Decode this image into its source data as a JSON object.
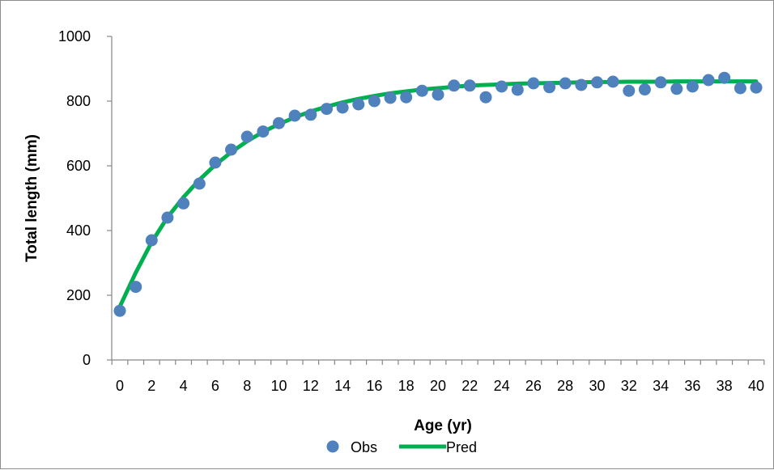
{
  "chart_data": {
    "type": "scatter",
    "title": "",
    "xlabel": "Age (yr)",
    "ylabel": "Total length (mm)",
    "xlim": [
      0,
      40
    ],
    "ylim": [
      0,
      1000
    ],
    "x_ticks": [
      "0",
      "2",
      "4",
      "6",
      "8",
      "10",
      "12",
      "14",
      "16",
      "18",
      "20",
      "22",
      "24",
      "26",
      "28",
      "30",
      "32",
      "34",
      "36",
      "38",
      "40"
    ],
    "y_ticks": [
      "0",
      "200",
      "400",
      "600",
      "800",
      "1000"
    ],
    "grid": false,
    "legend": {
      "position": "bottom",
      "entries": [
        "Obs",
        "Pred"
      ]
    },
    "colors": {
      "obs": "#4f81bd",
      "pred": "#00b050",
      "axis": "#868686",
      "frame": "#8c8c8c"
    },
    "series": [
      {
        "name": "Obs",
        "kind": "points",
        "x": [
          0,
          1,
          2,
          3,
          4,
          5,
          6,
          7,
          8,
          9,
          10,
          11,
          12,
          13,
          14,
          15,
          16,
          17,
          18,
          19,
          20,
          21,
          22,
          23,
          24,
          25,
          26,
          27,
          28,
          29,
          30,
          31,
          32,
          33,
          34,
          35,
          36,
          37,
          38,
          39,
          40
        ],
        "y": [
          152,
          226,
          370,
          440,
          484,
          545,
          610,
          650,
          690,
          706,
          732,
          755,
          758,
          776,
          780,
          790,
          800,
          810,
          812,
          832,
          820,
          848,
          848,
          812,
          845,
          835,
          855,
          843,
          855,
          850,
          858,
          860,
          832,
          836,
          858,
          838,
          845,
          865,
          872,
          840,
          842
        ]
      },
      {
        "name": "Pred",
        "kind": "line",
        "x": [
          0,
          1,
          2,
          3,
          4,
          5,
          6,
          7,
          8,
          9,
          10,
          11,
          12,
          13,
          14,
          15,
          16,
          17,
          18,
          19,
          20,
          21,
          22,
          23,
          24,
          25,
          26,
          27,
          28,
          29,
          30,
          31,
          32,
          33,
          34,
          35,
          36,
          37,
          38,
          39,
          40
        ],
        "y": [
          165,
          270,
          364,
          441,
          503,
          557,
          603,
          642,
          676,
          705,
          729,
          750,
          768,
          783,
          796,
          807,
          816,
          824,
          830,
          836,
          840,
          844,
          848,
          850,
          852,
          854,
          855,
          856,
          857,
          858,
          859,
          859,
          860,
          860,
          860,
          861,
          861,
          861,
          861,
          861,
          861
        ]
      }
    ]
  }
}
